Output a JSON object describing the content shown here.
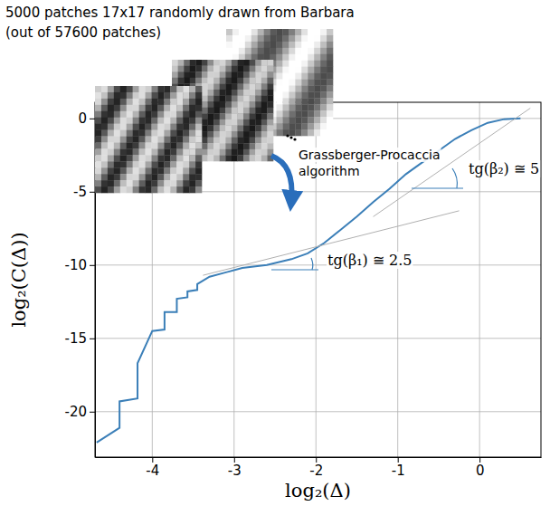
{
  "chart_data": {
    "type": "line",
    "title": "5000 patches 17x17 randomly drawn from Barbara",
    "subtitle": "(out of 57600 patches)",
    "x_label": "log₂(Δ)",
    "y_label": "log₂(C(Δ))",
    "annotations": [
      "Grassberger-Procaccia",
      "algorithm",
      "tg(β₁) ≅ 2.5",
      "tg(β₂) ≅ 5"
    ],
    "series": [
      {
        "color": "#3b7fb8",
        "x": [
          -4.68,
          -4.4,
          -4.4,
          -4.18,
          -4.18,
          -4.0,
          -3.85,
          -3.85,
          -3.7,
          -3.7,
          -3.57,
          -3.57,
          -3.45,
          -3.45,
          -3.3,
          -3.1,
          -2.9,
          -2.6,
          -2.3,
          -2.1,
          -1.9,
          -1.7,
          -1.5,
          -1.3,
          -1.1,
          -0.9,
          -0.7,
          -0.5,
          -0.3,
          -0.1,
          0.1,
          0.3,
          0.5
        ],
        "values": [
          -22.1,
          -21.1,
          -19.3,
          -19.1,
          -16.7,
          -14.5,
          -14.4,
          -13.2,
          -13.2,
          -12.3,
          -12.2,
          -11.8,
          -11.7,
          -11.3,
          -10.8,
          -10.5,
          -10.2,
          -10.0,
          -9.6,
          -9.2,
          -8.5,
          -7.6,
          -6.7,
          -5.7,
          -4.8,
          -3.8,
          -3.0,
          -2.2,
          -1.4,
          -0.8,
          -0.3,
          -0.05,
          0.0
        ]
      },
      {
        "color": "#b0b0b0",
        "x": [
          -3.38,
          -0.25
        ],
        "values": [
          -10.7,
          -6.3
        ]
      },
      {
        "color": "#b0b0b0",
        "x": [
          -1.3,
          0.62
        ],
        "values": [
          -6.7,
          0.7
        ]
      }
    ],
    "xlim": [
      -4.7,
      0.75
    ],
    "ylim": [
      -23.1,
      1.1
    ],
    "xticks": [
      -4,
      -3,
      -2,
      -1,
      0
    ],
    "yticks": [
      -20,
      -15,
      -10,
      -5,
      0
    ],
    "grid": true
  }
}
